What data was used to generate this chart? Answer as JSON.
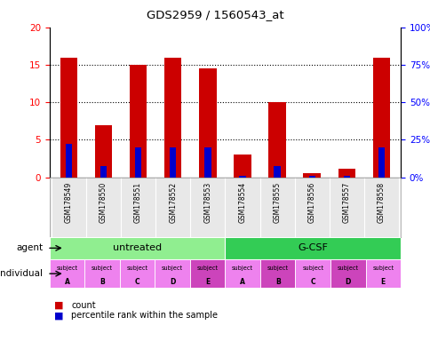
{
  "title": "GDS2959 / 1560543_at",
  "samples": [
    "GSM178549",
    "GSM178550",
    "GSM178551",
    "GSM178552",
    "GSM178553",
    "GSM178554",
    "GSM178555",
    "GSM178556",
    "GSM178557",
    "GSM178558"
  ],
  "count_values": [
    16,
    7,
    15,
    16,
    14.5,
    3,
    10,
    0.5,
    1.2,
    16
  ],
  "percentile_values": [
    22.5,
    7.5,
    20.0,
    20.0,
    20.0,
    1.0,
    7.5,
    1.0,
    1.0,
    20.0
  ],
  "bar_color": "#CC0000",
  "percentile_color": "#0000CC",
  "ylim_left": [
    0,
    20
  ],
  "ylim_right": [
    0,
    100
  ],
  "yticks_left": [
    0,
    5,
    10,
    15,
    20
  ],
  "yticks_right": [
    0,
    25,
    50,
    75,
    100
  ],
  "yticklabels_right": [
    "0%",
    "25%",
    "50%",
    "75%",
    "100%"
  ],
  "agent_groups": [
    {
      "label": "untreated",
      "start": 0,
      "end": 5,
      "color": "#90EE90"
    },
    {
      "label": "G-CSF",
      "start": 5,
      "end": 10,
      "color": "#33CC55"
    }
  ],
  "individual_labels": [
    "subject\nA",
    "subject\nB",
    "subject\nC",
    "subject\nD",
    "subject\nE",
    "subject\nA",
    "subject\nB",
    "subject\nC",
    "subject\nD",
    "subject\nE"
  ],
  "individual_highlight": [
    4,
    6,
    8
  ],
  "individual_bg_default": "#EE82EE",
  "individual_bg_highlight": "#CC44BB",
  "agent_label": "agent",
  "individual_label": "individual",
  "legend_count_color": "#CC0000",
  "legend_percentile_color": "#0000CC"
}
